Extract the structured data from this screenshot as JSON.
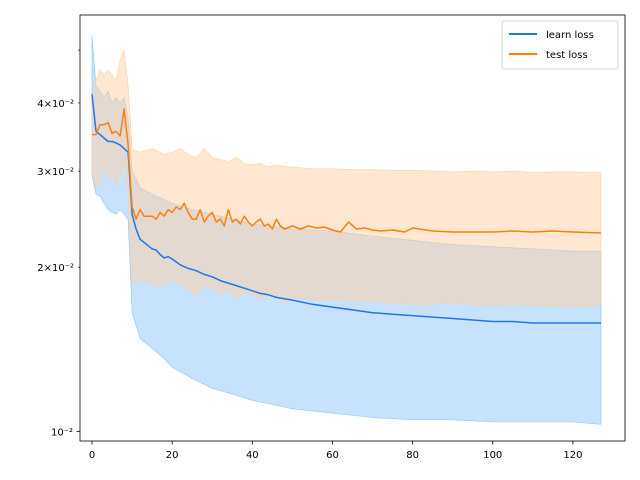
{
  "chart_data": {
    "type": "line",
    "yscale": "log",
    "xlim": [
      -3,
      133
    ],
    "ylim": [
      0.0096,
      0.058
    ],
    "xticks": [
      0,
      20,
      40,
      60,
      80,
      100,
      120
    ],
    "xtick_labels": [
      "0",
      "20",
      "40",
      "60",
      "80",
      "100",
      "120"
    ],
    "yticks_major": [
      0.01
    ],
    "ytick_major_labels": [
      "10⁻²"
    ],
    "yticks_minor_labeled": [
      0.02,
      0.03,
      0.04
    ],
    "ytick_minor_labels": [
      "2×10⁻²",
      "3×10⁻²",
      "4×10⁻²"
    ],
    "yticks_minor_unlabeled": [
      0.05
    ],
    "legend_position": "top-right",
    "series": [
      {
        "name": "learn loss",
        "color": "#1f77e6",
        "band_color": "#8ec5f9",
        "mean": [
          [
            0,
            0.0415
          ],
          [
            1,
            0.0355
          ],
          [
            2,
            0.035
          ],
          [
            3,
            0.0345
          ],
          [
            4,
            0.034
          ],
          [
            5,
            0.034
          ],
          [
            6,
            0.0338
          ],
          [
            7,
            0.0335
          ],
          [
            8,
            0.033
          ],
          [
            9,
            0.0325
          ],
          [
            10,
            0.025
          ],
          [
            11,
            0.0235
          ],
          [
            12,
            0.0225
          ],
          [
            13,
            0.0222
          ],
          [
            14,
            0.0219
          ],
          [
            15,
            0.0216
          ],
          [
            16,
            0.0215
          ],
          [
            17,
            0.0211
          ],
          [
            18,
            0.0208
          ],
          [
            19,
            0.0209
          ],
          [
            20,
            0.0207
          ],
          [
            22,
            0.0202
          ],
          [
            24,
            0.0199
          ],
          [
            26,
            0.0197
          ],
          [
            28,
            0.0194
          ],
          [
            30,
            0.0192
          ],
          [
            32,
            0.0189
          ],
          [
            34,
            0.0187
          ],
          [
            36,
            0.0185
          ],
          [
            38,
            0.0183
          ],
          [
            40,
            0.0181
          ],
          [
            42,
            0.0179
          ],
          [
            44,
            0.0178
          ],
          [
            46,
            0.0176
          ],
          [
            48,
            0.0175
          ],
          [
            50,
            0.0174
          ],
          [
            55,
            0.0171
          ],
          [
            60,
            0.0169
          ],
          [
            65,
            0.0167
          ],
          [
            70,
            0.0165
          ],
          [
            75,
            0.0164
          ],
          [
            80,
            0.0163
          ],
          [
            85,
            0.0162
          ],
          [
            90,
            0.0161
          ],
          [
            95,
            0.016
          ],
          [
            100,
            0.0159
          ],
          [
            105,
            0.0159
          ],
          [
            110,
            0.0158
          ],
          [
            115,
            0.0158
          ],
          [
            120,
            0.0158
          ],
          [
            127,
            0.0158
          ]
        ],
        "upper": [
          [
            0,
            0.053
          ],
          [
            1,
            0.043
          ],
          [
            2,
            0.042
          ],
          [
            3,
            0.041
          ],
          [
            4,
            0.042
          ],
          [
            5,
            0.04
          ],
          [
            6,
            0.041
          ],
          [
            7,
            0.04
          ],
          [
            8,
            0.041
          ],
          [
            9,
            0.0375
          ],
          [
            10,
            0.03
          ],
          [
            12,
            0.028
          ],
          [
            15,
            0.0272
          ],
          [
            20,
            0.0262
          ],
          [
            25,
            0.0255
          ],
          [
            30,
            0.025
          ],
          [
            35,
            0.0245
          ],
          [
            40,
            0.024
          ],
          [
            45,
            0.0238
          ],
          [
            50,
            0.0235
          ],
          [
            60,
            0.0233
          ],
          [
            70,
            0.0228
          ],
          [
            80,
            0.0224
          ],
          [
            90,
            0.022
          ],
          [
            100,
            0.0218
          ],
          [
            110,
            0.0216
          ],
          [
            120,
            0.0214
          ],
          [
            127,
            0.0214
          ]
        ],
        "lower": [
          [
            0,
            0.0295
          ],
          [
            1,
            0.0272
          ],
          [
            2,
            0.027
          ],
          [
            3,
            0.0262
          ],
          [
            4,
            0.0255
          ],
          [
            5,
            0.0252
          ],
          [
            6,
            0.025
          ],
          [
            7,
            0.0255
          ],
          [
            8,
            0.025
          ],
          [
            9,
            0.0245
          ],
          [
            10,
            0.0165
          ],
          [
            12,
            0.0148
          ],
          [
            15,
            0.0142
          ],
          [
            18,
            0.0136
          ],
          [
            20,
            0.0131
          ],
          [
            25,
            0.0125
          ],
          [
            30,
            0.012
          ],
          [
            35,
            0.0117
          ],
          [
            40,
            0.0114
          ],
          [
            45,
            0.0112
          ],
          [
            50,
            0.011
          ],
          [
            60,
            0.0108
          ],
          [
            70,
            0.0106
          ],
          [
            80,
            0.0105
          ],
          [
            90,
            0.0105
          ],
          [
            100,
            0.0104
          ],
          [
            110,
            0.0104
          ],
          [
            120,
            0.0104
          ],
          [
            127,
            0.0103
          ]
        ]
      },
      {
        "name": "test loss",
        "color": "#ff7f0e",
        "band_color": "#ffcfa3",
        "mean": [
          [
            0,
            0.035
          ],
          [
            1,
            0.035
          ],
          [
            2,
            0.0365
          ],
          [
            3,
            0.0365
          ],
          [
            4,
            0.0368
          ],
          [
            5,
            0.0352
          ],
          [
            6,
            0.0355
          ],
          [
            7,
            0.0348
          ],
          [
            8,
            0.039
          ],
          [
            9,
            0.0335
          ],
          [
            10,
            0.0258
          ],
          [
            11,
            0.0245
          ],
          [
            12,
            0.0255
          ],
          [
            13,
            0.0248
          ],
          [
            14,
            0.0248
          ],
          [
            15,
            0.0248
          ],
          [
            16,
            0.0245
          ],
          [
            17,
            0.0252
          ],
          [
            18,
            0.0248
          ],
          [
            19,
            0.0255
          ],
          [
            20,
            0.0252
          ],
          [
            21,
            0.0258
          ],
          [
            22,
            0.0255
          ],
          [
            23,
            0.0262
          ],
          [
            24,
            0.0252
          ],
          [
            25,
            0.0245
          ],
          [
            26,
            0.0245
          ],
          [
            27,
            0.0255
          ],
          [
            28,
            0.0242
          ],
          [
            29,
            0.0248
          ],
          [
            30,
            0.0252
          ],
          [
            31,
            0.0242
          ],
          [
            32,
            0.0245
          ],
          [
            33,
            0.0238
          ],
          [
            34,
            0.0255
          ],
          [
            35,
            0.0242
          ],
          [
            36,
            0.0245
          ],
          [
            37,
            0.024
          ],
          [
            38,
            0.0248
          ],
          [
            39,
            0.0242
          ],
          [
            40,
            0.0238
          ],
          [
            41,
            0.0242
          ],
          [
            42,
            0.0245
          ],
          [
            43,
            0.0238
          ],
          [
            44,
            0.024
          ],
          [
            45,
            0.0235
          ],
          [
            46,
            0.0245
          ],
          [
            47,
            0.0238
          ],
          [
            48,
            0.0235
          ],
          [
            50,
            0.0238
          ],
          [
            52,
            0.0235
          ],
          [
            54,
            0.0238
          ],
          [
            56,
            0.0236
          ],
          [
            58,
            0.0237
          ],
          [
            60,
            0.0234
          ],
          [
            62,
            0.0232
          ],
          [
            64,
            0.0242
          ],
          [
            66,
            0.0235
          ],
          [
            68,
            0.0236
          ],
          [
            70,
            0.0234
          ],
          [
            72,
            0.0233
          ],
          [
            75,
            0.0234
          ],
          [
            78,
            0.0232
          ],
          [
            80,
            0.0236
          ],
          [
            85,
            0.0233
          ],
          [
            90,
            0.0232
          ],
          [
            95,
            0.0232
          ],
          [
            100,
            0.0232
          ],
          [
            105,
            0.0233
          ],
          [
            110,
            0.0232
          ],
          [
            115,
            0.0233
          ],
          [
            120,
            0.0232
          ],
          [
            127,
            0.0231
          ]
        ],
        "upper": [
          [
            0,
            0.041
          ],
          [
            1,
            0.044
          ],
          [
            2,
            0.046
          ],
          [
            3,
            0.045
          ],
          [
            4,
            0.046
          ],
          [
            5,
            0.045
          ],
          [
            6,
            0.044
          ],
          [
            7,
            0.048
          ],
          [
            8,
            0.05
          ],
          [
            9,
            0.043
          ],
          [
            10,
            0.033
          ],
          [
            12,
            0.0325
          ],
          [
            15,
            0.033
          ],
          [
            18,
            0.0322
          ],
          [
            20,
            0.0325
          ],
          [
            22,
            0.033
          ],
          [
            24,
            0.0322
          ],
          [
            26,
            0.0318
          ],
          [
            28,
            0.033
          ],
          [
            30,
            0.0318
          ],
          [
            32,
            0.0315
          ],
          [
            34,
            0.0312
          ],
          [
            36,
            0.0318
          ],
          [
            38,
            0.031
          ],
          [
            40,
            0.0308
          ],
          [
            42,
            0.031
          ],
          [
            44,
            0.0305
          ],
          [
            46,
            0.0308
          ],
          [
            48,
            0.0306
          ],
          [
            50,
            0.0305
          ],
          [
            55,
            0.0303
          ],
          [
            60,
            0.0303
          ],
          [
            65,
            0.0302
          ],
          [
            70,
            0.0302
          ],
          [
            75,
            0.0301
          ],
          [
            80,
            0.0301
          ],
          [
            85,
            0.03
          ],
          [
            90,
            0.0299
          ],
          [
            95,
            0.03
          ],
          [
            100,
            0.0299
          ],
          [
            105,
            0.03
          ],
          [
            110,
            0.0298
          ],
          [
            115,
            0.0299
          ],
          [
            120,
            0.0299
          ],
          [
            127,
            0.0298
          ]
        ],
        "lower": [
          [
            0,
            0.03
          ],
          [
            1,
            0.028
          ],
          [
            2,
            0.029
          ],
          [
            3,
            0.0305
          ],
          [
            4,
            0.029
          ],
          [
            5,
            0.0295
          ],
          [
            6,
            0.0283
          ],
          [
            7,
            0.0295
          ],
          [
            8,
            0.031
          ],
          [
            9,
            0.0275
          ],
          [
            10,
            0.0185
          ],
          [
            12,
            0.019
          ],
          [
            15,
            0.0186
          ],
          [
            18,
            0.0185
          ],
          [
            20,
            0.019
          ],
          [
            22,
            0.0186
          ],
          [
            24,
            0.0182
          ],
          [
            26,
            0.0178
          ],
          [
            28,
            0.0185
          ],
          [
            30,
            0.0183
          ],
          [
            32,
            0.0178
          ],
          [
            34,
            0.0182
          ],
          [
            36,
            0.0175
          ],
          [
            38,
            0.018
          ],
          [
            40,
            0.0178
          ],
          [
            42,
            0.0175
          ],
          [
            44,
            0.0178
          ],
          [
            46,
            0.0176
          ],
          [
            48,
            0.0172
          ],
          [
            50,
            0.0176
          ],
          [
            55,
            0.0175
          ],
          [
            60,
            0.0174
          ],
          [
            65,
            0.0173
          ],
          [
            70,
            0.0173
          ],
          [
            75,
            0.0172
          ],
          [
            80,
            0.0171
          ],
          [
            85,
            0.0171
          ],
          [
            90,
            0.0172
          ],
          [
            95,
            0.0171
          ],
          [
            100,
            0.017
          ],
          [
            105,
            0.0171
          ],
          [
            110,
            0.017
          ],
          [
            115,
            0.017
          ],
          [
            120,
            0.0169
          ],
          [
            127,
            0.0171
          ]
        ]
      }
    ]
  }
}
